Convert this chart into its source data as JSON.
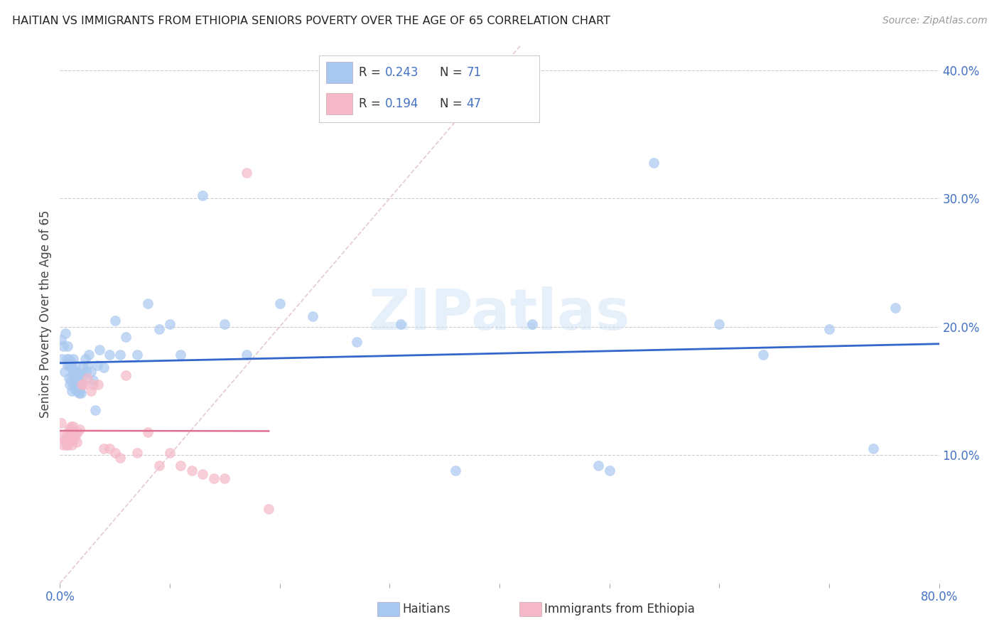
{
  "title": "HAITIAN VS IMMIGRANTS FROM ETHIOPIA SENIORS POVERTY OVER THE AGE OF 65 CORRELATION CHART",
  "source": "Source: ZipAtlas.com",
  "ylabel": "Seniors Poverty Over the Age of 65",
  "xlim": [
    0,
    0.8
  ],
  "ylim": [
    0,
    0.42
  ],
  "haitian_color": "#a8c8f0",
  "ethiopia_color": "#f4b8c8",
  "diagonal_color": "#cccccc",
  "haitian_line_color": "#3366cc",
  "ethiopia_line_color": "#e07090",
  "watermark": "ZIPatlas",
  "haitian_R": 0.243,
  "haitian_N": 71,
  "ethiopia_R": 0.194,
  "ethiopia_N": 47,
  "haitian_x": [
    0.001,
    0.002,
    0.003,
    0.004,
    0.005,
    0.006,
    0.007,
    0.007,
    0.008,
    0.008,
    0.009,
    0.009,
    0.01,
    0.01,
    0.011,
    0.011,
    0.012,
    0.012,
    0.012,
    0.013,
    0.013,
    0.014,
    0.014,
    0.015,
    0.015,
    0.016,
    0.016,
    0.017,
    0.017,
    0.018,
    0.018,
    0.019,
    0.02,
    0.021,
    0.022,
    0.023,
    0.024,
    0.025,
    0.026,
    0.028,
    0.03,
    0.032,
    0.034,
    0.036,
    0.04,
    0.045,
    0.05,
    0.055,
    0.06,
    0.07,
    0.08,
    0.09,
    0.1,
    0.11,
    0.13,
    0.15,
    0.17,
    0.2,
    0.23,
    0.27,
    0.31,
    0.36,
    0.43,
    0.49,
    0.5,
    0.54,
    0.6,
    0.64,
    0.7,
    0.74,
    0.76
  ],
  "haitian_y": [
    0.19,
    0.175,
    0.185,
    0.165,
    0.195,
    0.175,
    0.17,
    0.185,
    0.16,
    0.175,
    0.155,
    0.17,
    0.158,
    0.172,
    0.15,
    0.168,
    0.155,
    0.165,
    0.175,
    0.152,
    0.162,
    0.155,
    0.17,
    0.15,
    0.16,
    0.155,
    0.165,
    0.148,
    0.158,
    0.15,
    0.163,
    0.148,
    0.155,
    0.168,
    0.162,
    0.175,
    0.165,
    0.17,
    0.178,
    0.165,
    0.158,
    0.135,
    0.17,
    0.182,
    0.168,
    0.178,
    0.205,
    0.178,
    0.192,
    0.178,
    0.218,
    0.198,
    0.202,
    0.178,
    0.302,
    0.202,
    0.178,
    0.218,
    0.208,
    0.188,
    0.202,
    0.088,
    0.202,
    0.092,
    0.088,
    0.328,
    0.202,
    0.178,
    0.198,
    0.105,
    0.215
  ],
  "ethiopia_x": [
    0.001,
    0.002,
    0.003,
    0.004,
    0.005,
    0.006,
    0.006,
    0.007,
    0.007,
    0.008,
    0.008,
    0.009,
    0.009,
    0.01,
    0.01,
    0.011,
    0.011,
    0.012,
    0.012,
    0.013,
    0.013,
    0.014,
    0.015,
    0.016,
    0.018,
    0.02,
    0.022,
    0.025,
    0.028,
    0.03,
    0.035,
    0.04,
    0.045,
    0.05,
    0.055,
    0.06,
    0.07,
    0.08,
    0.09,
    0.1,
    0.11,
    0.12,
    0.13,
    0.14,
    0.15,
    0.17,
    0.19
  ],
  "ethiopia_y": [
    0.125,
    0.115,
    0.108,
    0.112,
    0.11,
    0.108,
    0.115,
    0.112,
    0.108,
    0.12,
    0.112,
    0.11,
    0.118,
    0.112,
    0.122,
    0.108,
    0.118,
    0.115,
    0.122,
    0.112,
    0.118,
    0.115,
    0.11,
    0.118,
    0.12,
    0.155,
    0.155,
    0.16,
    0.15,
    0.155,
    0.155,
    0.105,
    0.105,
    0.102,
    0.098,
    0.162,
    0.102,
    0.118,
    0.092,
    0.102,
    0.092,
    0.088,
    0.085,
    0.082,
    0.082,
    0.32,
    0.058
  ]
}
